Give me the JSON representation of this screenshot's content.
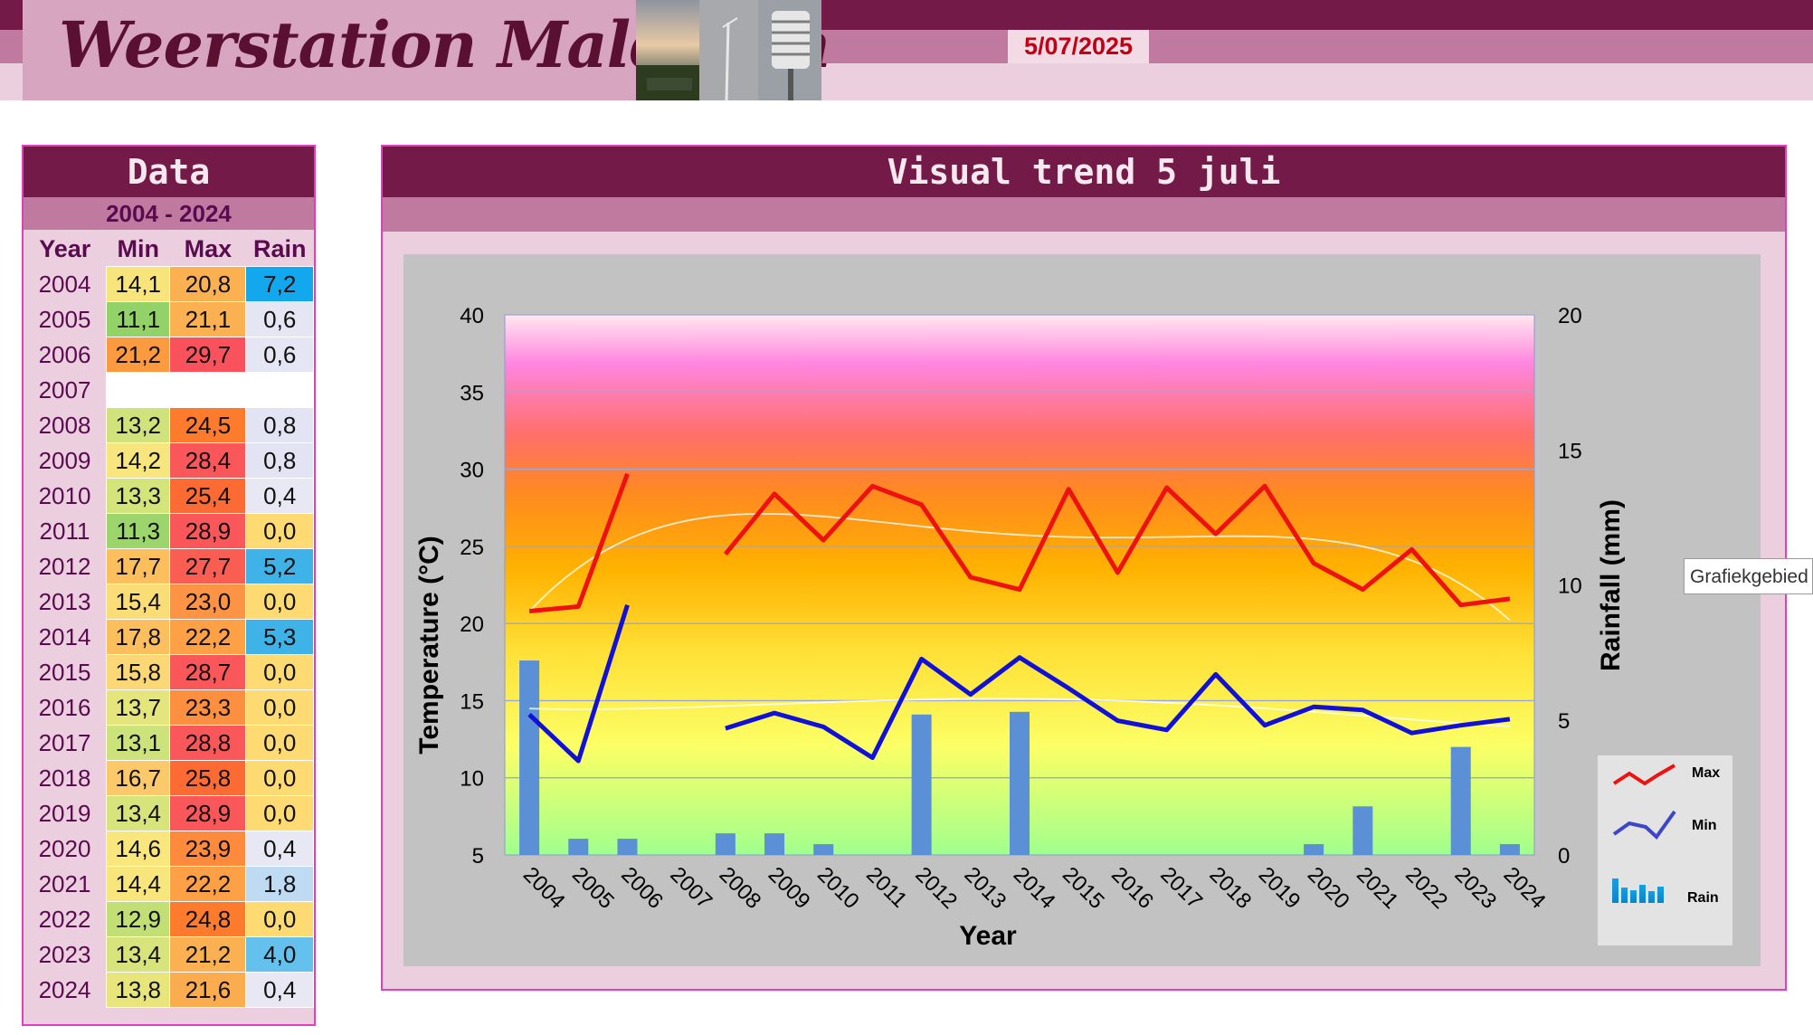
{
  "header": {
    "title": "Weerstation Malderen",
    "date": "5/07/2025"
  },
  "colors": {
    "header_dark": "#741a48",
    "header_mid": "#c17a9f",
    "header_light": "#ebcfdf",
    "max_line": "#ee1111",
    "min_line": "#1010d8",
    "rain_bar": "#5b8fd6"
  },
  "table": {
    "title": "Data",
    "range": "2004 - 2024",
    "headers": [
      "Year",
      "Min",
      "Max",
      "Rain"
    ],
    "rows": [
      {
        "year": "2004",
        "min": "14,1",
        "max": "20,8",
        "rain": "7,2",
        "min_color": "#f7e47a",
        "max_color": "#fbb052",
        "rain_color": "#13a8ee"
      },
      {
        "year": "2005",
        "min": "11,1",
        "max": "21,1",
        "rain": "0,6",
        "min_color": "#92d269",
        "max_color": "#fbb052",
        "rain_color": "#e5e6f4"
      },
      {
        "year": "2006",
        "min": "21,2",
        "max": "29,7",
        "rain": "0,6",
        "min_color": "#fb9a3f",
        "max_color": "#f9525d",
        "rain_color": "#e5e6f4"
      },
      {
        "year": "2007",
        "min": "",
        "max": "",
        "rain": "",
        "min_color": "#ffffff",
        "max_color": "#ffffff",
        "rain_color": "#ffffff"
      },
      {
        "year": "2008",
        "min": "13,2",
        "max": "24,5",
        "rain": "0,8",
        "min_color": "#cfe27b",
        "max_color": "#fc7b2d",
        "rain_color": "#e2e3f3"
      },
      {
        "year": "2009",
        "min": "14,2",
        "max": "28,4",
        "rain": "0,8",
        "min_color": "#f7e67d",
        "max_color": "#f9575a",
        "rain_color": "#e2e3f3"
      },
      {
        "year": "2010",
        "min": "13,3",
        "max": "25,4",
        "rain": "0,4",
        "min_color": "#d3e47b",
        "max_color": "#fc6b33",
        "rain_color": "#e8e8f4"
      },
      {
        "year": "2011",
        "min": "11,3",
        "max": "28,9",
        "rain": "0,0",
        "min_color": "#9bd56b",
        "max_color": "#f9575a",
        "rain_color": "#fedb72"
      },
      {
        "year": "2012",
        "min": "17,7",
        "max": "27,7",
        "rain": "5,2",
        "min_color": "#fdbe5e",
        "max_color": "#fa5e52",
        "rain_color": "#3fb2e8"
      },
      {
        "year": "2013",
        "min": "15,4",
        "max": "23,0",
        "rain": "0,0",
        "min_color": "#fbdd78",
        "max_color": "#fd9344",
        "rain_color": "#fedb72"
      },
      {
        "year": "2014",
        "min": "17,8",
        "max": "22,2",
        "rain": "5,3",
        "min_color": "#fdbe5e",
        "max_color": "#fda046",
        "rain_color": "#3fb2e8"
      },
      {
        "year": "2015",
        "min": "15,8",
        "max": "28,7",
        "rain": "0,0",
        "min_color": "#fcd776",
        "max_color": "#f9575a",
        "rain_color": "#fedb72"
      },
      {
        "year": "2016",
        "min": "13,7",
        "max": "23,3",
        "rain": "0,0",
        "min_color": "#e4e57c",
        "max_color": "#fd8f40",
        "rain_color": "#fedb72"
      },
      {
        "year": "2017",
        "min": "13,1",
        "max": "28,8",
        "rain": "0,0",
        "min_color": "#cce27b",
        "max_color": "#f9575a",
        "rain_color": "#fedb72"
      },
      {
        "year": "2018",
        "min": "16,7",
        "max": "25,8",
        "rain": "0,0",
        "min_color": "#fcc96a",
        "max_color": "#fc6b33",
        "rain_color": "#fedb72"
      },
      {
        "year": "2019",
        "min": "13,4",
        "max": "28,9",
        "rain": "0,0",
        "min_color": "#d6e47b",
        "max_color": "#f9575a",
        "rain_color": "#fedb72"
      },
      {
        "year": "2020",
        "min": "14,6",
        "max": "23,9",
        "rain": "0,4",
        "min_color": "#f9e77d",
        "max_color": "#fd8a3d",
        "rain_color": "#e8e8f4"
      },
      {
        "year": "2021",
        "min": "14,4",
        "max": "22,2",
        "rain": "1,8",
        "min_color": "#f8e67d",
        "max_color": "#fda046",
        "rain_color": "#bfdbf3"
      },
      {
        "year": "2022",
        "min": "12,9",
        "max": "24,8",
        "rain": "0,0",
        "min_color": "#c1df75",
        "max_color": "#fc7b2d",
        "rain_color": "#fedb72"
      },
      {
        "year": "2023",
        "min": "13,4",
        "max": "21,2",
        "rain": "4,0",
        "min_color": "#d6e47b",
        "max_color": "#fbb052",
        "rain_color": "#64c0ec"
      },
      {
        "year": "2024",
        "min": "13,8",
        "max": "21,6",
        "rain": "0,4",
        "min_color": "#e7e57c",
        "max_color": "#fbac4f",
        "rain_color": "#e8e8f4"
      }
    ]
  },
  "tooltip": "Grafiekgebied",
  "chart_data": {
    "type": "line",
    "title": "Visual trend 5 juli",
    "xlabel": "Year",
    "ylabel": "Temperature (°C)",
    "y2label": "Rainfall (mm)",
    "ylim": [
      5,
      40
    ],
    "y_ticks": [
      "5",
      "10",
      "15",
      "20",
      "25",
      "30",
      "35",
      "40"
    ],
    "y2lim": [
      0,
      20
    ],
    "y2_ticks": [
      "0",
      "5",
      "10",
      "15",
      "20"
    ],
    "categories": [
      "2004",
      "2005",
      "2006",
      "2007",
      "2008",
      "2009",
      "2010",
      "2011",
      "2012",
      "2013",
      "2014",
      "2015",
      "2016",
      "2017",
      "2018",
      "2019",
      "2020",
      "2021",
      "2022",
      "2023",
      "2024"
    ],
    "series": [
      {
        "name": "Max",
        "axis": "left",
        "type": "line",
        "color": "#ee1111",
        "values": [
          20.8,
          21.1,
          29.7,
          null,
          24.5,
          28.4,
          25.4,
          28.9,
          27.7,
          23.0,
          22.2,
          28.7,
          23.3,
          28.8,
          25.8,
          28.9,
          23.9,
          22.2,
          24.8,
          21.2,
          21.6
        ]
      },
      {
        "name": "Min",
        "axis": "left",
        "type": "line",
        "color": "#1010d8",
        "values": [
          14.1,
          11.1,
          21.2,
          null,
          13.2,
          14.2,
          13.3,
          11.3,
          17.7,
          15.4,
          17.8,
          15.8,
          13.7,
          13.1,
          16.7,
          13.4,
          14.6,
          14.4,
          12.9,
          13.4,
          13.8
        ]
      },
      {
        "name": "Rain",
        "axis": "right",
        "type": "bar",
        "color": "#5b8fd6",
        "values": [
          7.2,
          0.6,
          0.6,
          0,
          0.8,
          0.8,
          0.4,
          0,
          5.2,
          0,
          5.3,
          0,
          0,
          0,
          0,
          0,
          0.4,
          1.8,
          0,
          4.0,
          0.4
        ]
      }
    ],
    "legend": {
      "placement": "right",
      "items": [
        "Max",
        "Min",
        "Rain"
      ]
    },
    "grid": true
  }
}
